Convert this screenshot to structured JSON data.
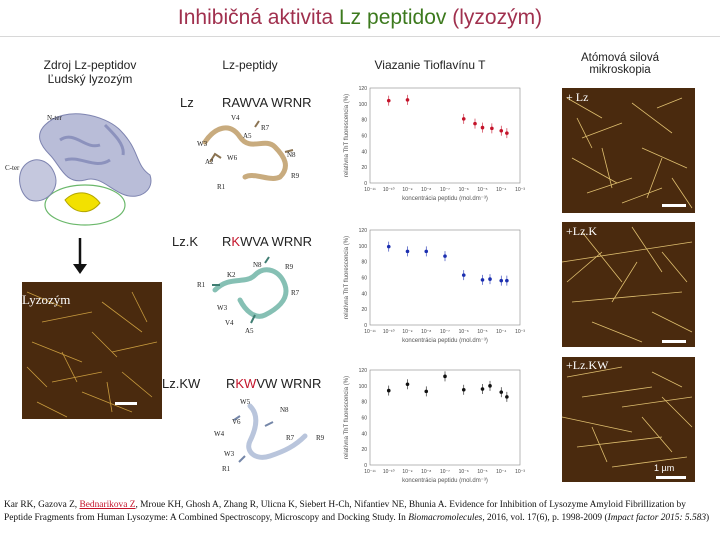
{
  "title": {
    "part1": "Inhibičná aktivita ",
    "part2": "Lz peptidov",
    "part3": " (lyzozým)"
  },
  "headers": {
    "source_line1": "Zdroj Lz-peptidov",
    "source_line2": "Ľudský lyzozým",
    "peptides": "Lz-peptidy",
    "thioflavin": "Viazanie Tioflavínu T",
    "afm_line1": "Atómová silová",
    "afm_line2": "mikroskopia"
  },
  "protein_labels": {
    "n_ter": "N-ter",
    "c_ter": "C-ter"
  },
  "lyzozym_label": "Lyzozým",
  "rows": [
    {
      "name": "Lz",
      "seq_parts": [
        "",
        "",
        "RAWVA  WRNR"
      ],
      "afm_label": "+ Lz",
      "residues": [
        "V4",
        "R7",
        "W3",
        "A5",
        "A2",
        "W6",
        "N8",
        "R1",
        "R9"
      ]
    },
    {
      "name": "Lz.K",
      "seq_parts": [
        "R",
        "K",
        "WVA  WRNR"
      ],
      "afm_label": "+Lz.K",
      "residues": [
        "N8",
        "R9",
        "K2",
        "R1",
        "W3",
        "R7",
        "V4",
        "A5"
      ]
    },
    {
      "name": "Lz.KW",
      "seq_parts": [
        "R",
        "KW",
        "VW  WRNR"
      ],
      "afm_label": "+Lz.KW",
      "residues": [
        "W5",
        "N8",
        "W4",
        "W3",
        "R7",
        "R9",
        "V6",
        "R1"
      ]
    }
  ],
  "afm_scale_label": "1 µm",
  "chart_data": [
    {
      "type": "scatter",
      "ylabel": "relatívna ThT fluorescencia (%)",
      "xlabel": "koncentrácia peptidu (mol.dm⁻³)",
      "ylim": [
        0,
        120
      ],
      "yticks": [
        "0",
        "20",
        "40",
        "60",
        "80",
        "100",
        "120"
      ],
      "xticks": [
        "10⁻¹¹",
        "10⁻¹⁰",
        "10⁻⁹",
        "10⁻⁸",
        "10⁻⁷",
        "10⁻⁶",
        "10⁻⁵",
        "10⁻⁴",
        "10⁻³"
      ],
      "color": "#c4132a",
      "points": [
        {
          "x": -10,
          "y": 104
        },
        {
          "x": -9,
          "y": 105
        },
        {
          "x": -6,
          "y": 81
        },
        {
          "x": -5.4,
          "y": 75
        },
        {
          "x": -5,
          "y": 70
        },
        {
          "x": -4.5,
          "y": 69
        },
        {
          "x": -4,
          "y": 66
        },
        {
          "x": -3.7,
          "y": 63
        }
      ]
    },
    {
      "type": "scatter",
      "ylabel": "relatívna ThT fluorescencia (%)",
      "xlabel": "koncentrácia peptidu (mol.dm⁻³)",
      "ylim": [
        0,
        120
      ],
      "yticks": [
        "0",
        "20",
        "40",
        "60",
        "80",
        "100",
        "120"
      ],
      "xticks": [
        "10⁻¹¹",
        "10⁻¹⁰",
        "10⁻⁹",
        "10⁻⁸",
        "10⁻⁷",
        "10⁻⁶",
        "10⁻⁵",
        "10⁻⁴",
        "10⁻³"
      ],
      "color": "#1c2fb0",
      "points": [
        {
          "x": -10,
          "y": 99
        },
        {
          "x": -9,
          "y": 93
        },
        {
          "x": -8,
          "y": 93
        },
        {
          "x": -7,
          "y": 87
        },
        {
          "x": -6,
          "y": 63
        },
        {
          "x": -5,
          "y": 57
        },
        {
          "x": -4.6,
          "y": 58
        },
        {
          "x": -4,
          "y": 56
        },
        {
          "x": -3.7,
          "y": 56
        }
      ]
    },
    {
      "type": "scatter",
      "ylabel": "relatívna ThT fluorescencia (%)",
      "xlabel": "koncentrácia peptidu (mol.dm⁻³)",
      "ylim": [
        0,
        120
      ],
      "yticks": [
        "0",
        "20",
        "40",
        "60",
        "80",
        "100",
        "120"
      ],
      "xticks": [
        "10⁻¹¹",
        "10⁻¹⁰",
        "10⁻⁹",
        "10⁻⁸",
        "10⁻⁷",
        "10⁻⁶",
        "10⁻⁵",
        "10⁻⁴",
        "10⁻³"
      ],
      "color": "#111111",
      "points": [
        {
          "x": -10,
          "y": 94
        },
        {
          "x": -9,
          "y": 102
        },
        {
          "x": -8,
          "y": 93
        },
        {
          "x": -7,
          "y": 112
        },
        {
          "x": -6,
          "y": 95
        },
        {
          "x": -5,
          "y": 96
        },
        {
          "x": -4.6,
          "y": 100
        },
        {
          "x": -4,
          "y": 92
        },
        {
          "x": -3.7,
          "y": 86
        }
      ]
    }
  ],
  "reference": {
    "pre": "Kar RK, Gazova Z, ",
    "highlight": "Bednarikova Z",
    "mid": ", Mroue KH, Ghosh A, Zhang R, Ulicna K, Siebert H-Ch, Nifantiev NE, Bhunia  A. Evidence for Inhibition of Lysozyme Amyloid Fibrillization by Peptide Fragments from Human Lysozyme: A Combined Spectroscopy, Microscopy and Docking Study. In ",
    "journal": "Biomacromolecules",
    "post": ", 2016, vol. 17(6), p. 1998-2009 (",
    "impact": "Impact factor 2015: 5.583",
    "end": ")"
  }
}
